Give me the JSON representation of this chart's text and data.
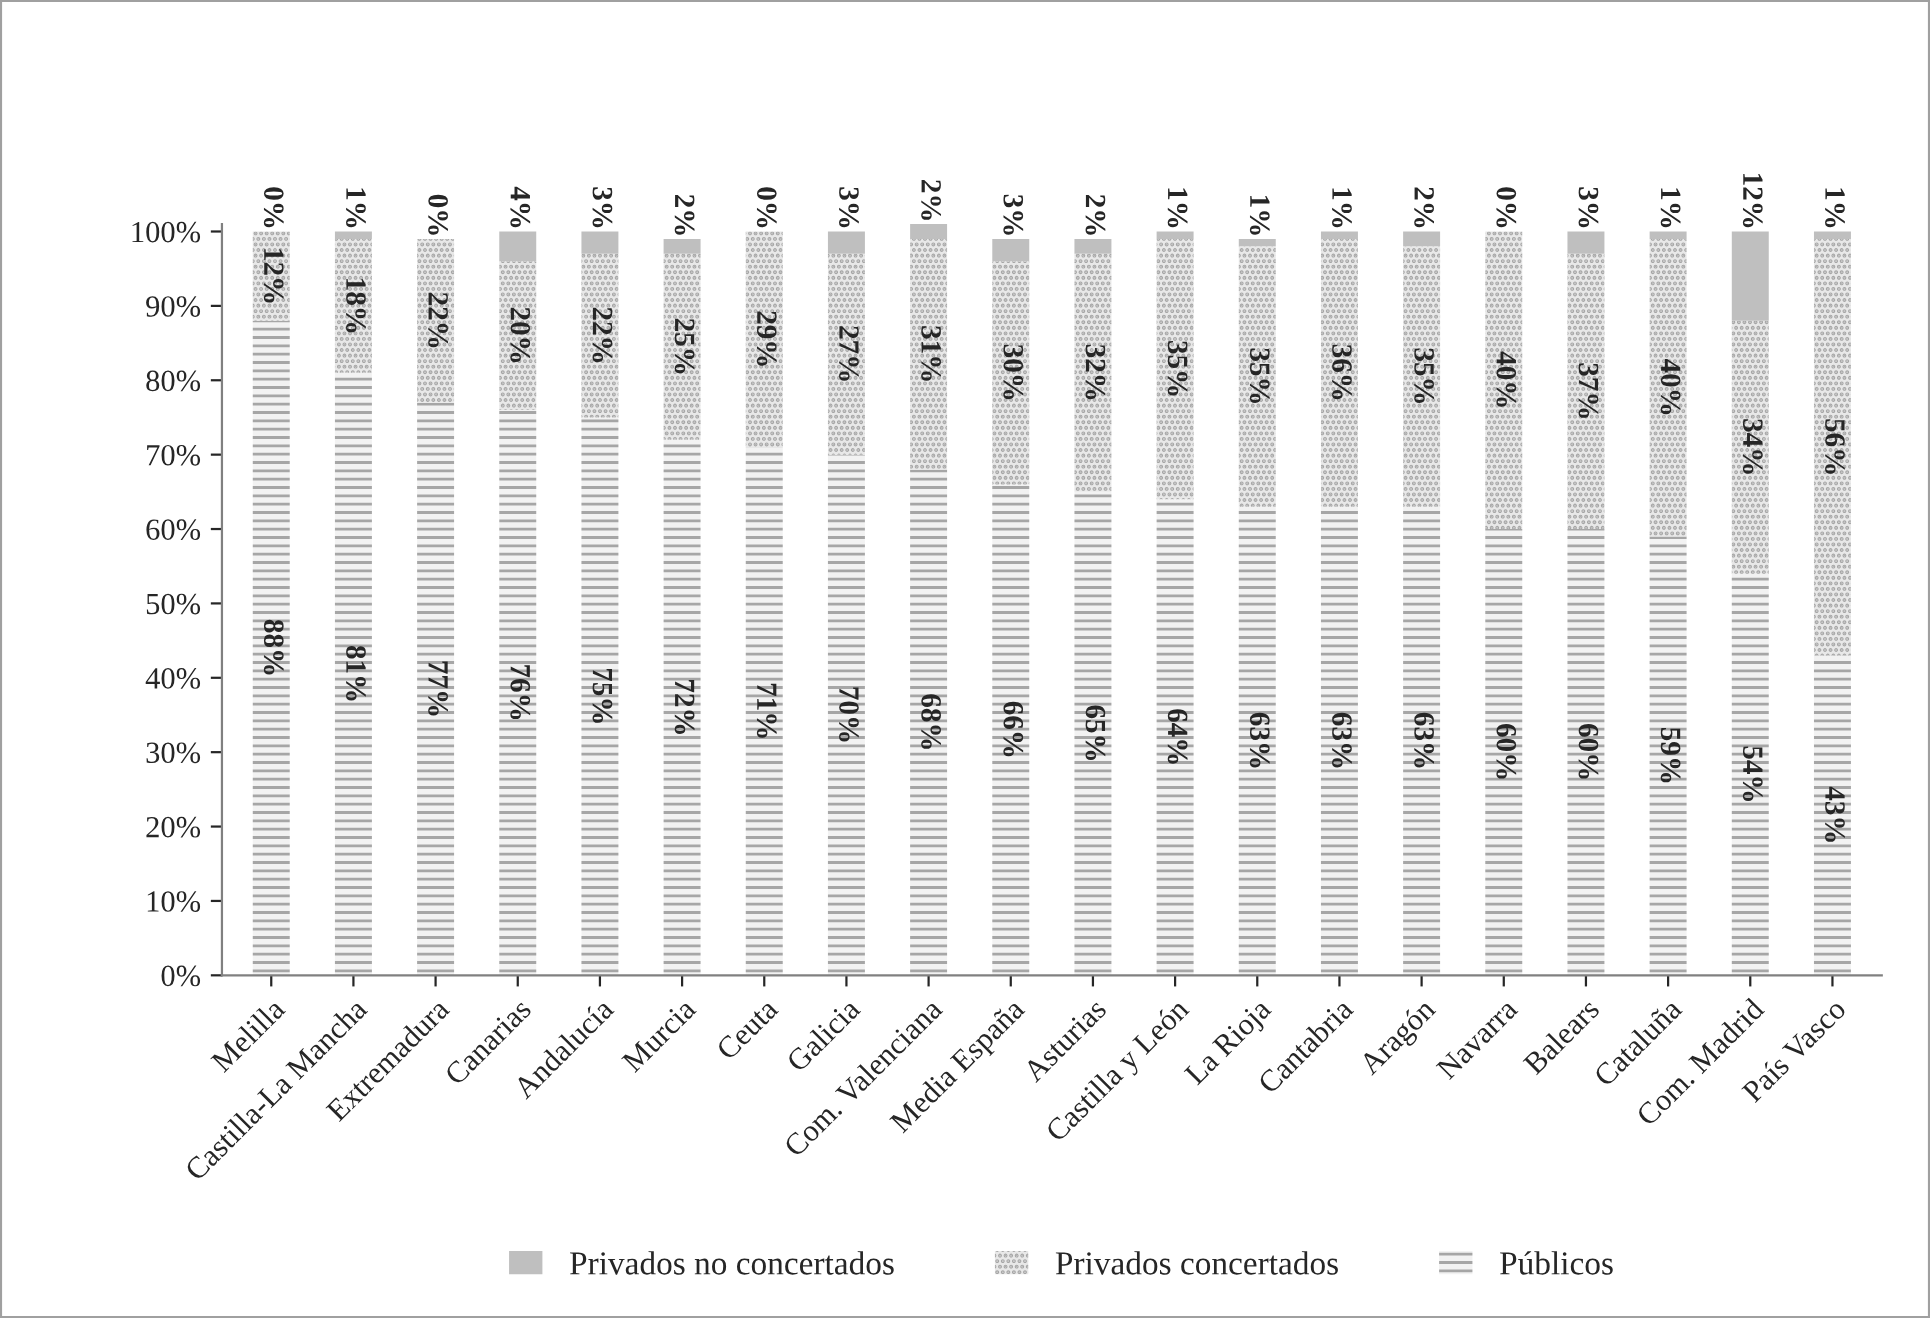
{
  "chart_data": {
    "type": "bar",
    "stacked": true,
    "categories": [
      "Melilla",
      "Castilla-La Mancha",
      "Extremadura",
      "Canarias",
      "Andalucía",
      "Murcia",
      "Ceuta",
      "Galicia",
      "Com. Valenciana",
      "Media España",
      "Asturias",
      "Castilla y León",
      "La Rioja",
      "Cantabria",
      "Aragón",
      "Navarra",
      "Balears",
      "Cataluña",
      "Com. Madrid",
      "País Vasco"
    ],
    "series": [
      {
        "name": "Públicos",
        "color": "#f2f2f2",
        "values": [
          88,
          81,
          77,
          76,
          75,
          72,
          71,
          70,
          68,
          66,
          65,
          64,
          63,
          63,
          63,
          60,
          60,
          59,
          54,
          43
        ],
        "value_labels": [
          "88%",
          "81%",
          "77%",
          "76%",
          "75%",
          "72%",
          "71%",
          "70%",
          "68%",
          "66%",
          "65%",
          "64%",
          "63%",
          "63%",
          "63%",
          "60%",
          "60%",
          "59%",
          "54%",
          "43%"
        ]
      },
      {
        "name": "Privados concertados",
        "color": "#e8e8e8",
        "values": [
          12,
          18,
          22,
          20,
          22,
          25,
          29,
          27,
          31,
          30,
          32,
          35,
          35,
          36,
          35,
          40,
          37,
          40,
          34,
          56
        ],
        "value_labels": [
          "12%",
          "18%",
          "22%",
          "20%",
          "22%",
          "25%",
          "29%",
          "27%",
          "31%",
          "30%",
          "32%",
          "35%",
          "35%",
          "36%",
          "35%",
          "40%",
          "37%",
          "40%",
          "34%",
          "56%"
        ]
      },
      {
        "name": "Privados no concertados",
        "color": "#bfbfbf",
        "values": [
          0,
          1,
          0,
          4,
          3,
          2,
          0,
          3,
          2,
          3,
          2,
          1,
          1,
          1,
          2,
          0,
          3,
          1,
          12,
          1
        ],
        "value_labels": [
          "0%",
          "1%",
          "0%",
          "4%",
          "3%",
          "2%",
          "0%",
          "3%",
          "2%",
          "3%",
          "2%",
          "1%",
          "1%",
          "1%",
          "2%",
          "0%",
          "3%",
          "1%",
          "12%",
          "1%"
        ]
      }
    ],
    "ylim": [
      0,
      101
    ],
    "yticks": [
      {
        "value": 0,
        "label": "0%"
      },
      {
        "value": 10,
        "label": "10%"
      },
      {
        "value": 20,
        "label": "20%"
      },
      {
        "value": 30,
        "label": "30%"
      },
      {
        "value": 40,
        "label": "40%"
      },
      {
        "value": 50,
        "label": "50%"
      },
      {
        "value": 60,
        "label": "60%"
      },
      {
        "value": 70,
        "label": "70%"
      },
      {
        "value": 80,
        "label": "80%"
      },
      {
        "value": 90,
        "label": "90%"
      },
      {
        "value": 100,
        "label": "100%"
      }
    ],
    "grid": false,
    "legend": "bottom"
  }
}
